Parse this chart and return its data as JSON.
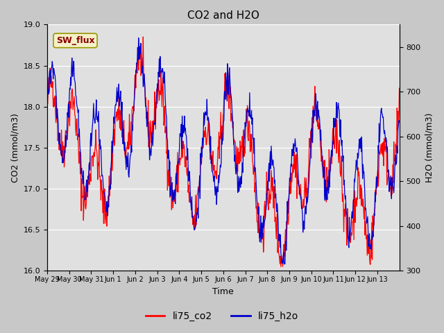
{
  "title": "CO2 and H2O",
  "xlabel": "Time",
  "ylabel_left": "CO2 (mmol/m3)",
  "ylabel_right": "H2O (mmol/m3)",
  "co2_ylim": [
    16.0,
    19.0
  ],
  "h2o_ylim": [
    300,
    850
  ],
  "fig_bg_color": "#c8c8c8",
  "plot_bg_color": "#e0e0e0",
  "annotation_text": "SW_flux",
  "annotation_color": "#8b0000",
  "annotation_bg": "#f5f0c8",
  "annotation_edge": "#999900",
  "xtick_labels": [
    "May 29",
    "May 30",
    "May 31",
    "Jun 1",
    "Jun 2",
    "Jun 3",
    "Jun 4",
    "Jun 5",
    "Jun 6",
    "Jun 7",
    "Jun 8",
    "Jun 9",
    "Jun 10",
    "Jun 11",
    "Jun 12",
    "Jun 13"
  ],
  "co2_color": "#ff0000",
  "h2o_color": "#0000cc",
  "legend_co2": "li75_co2",
  "legend_h2o": "li75_h2o",
  "seed": 42,
  "n_days": 16
}
